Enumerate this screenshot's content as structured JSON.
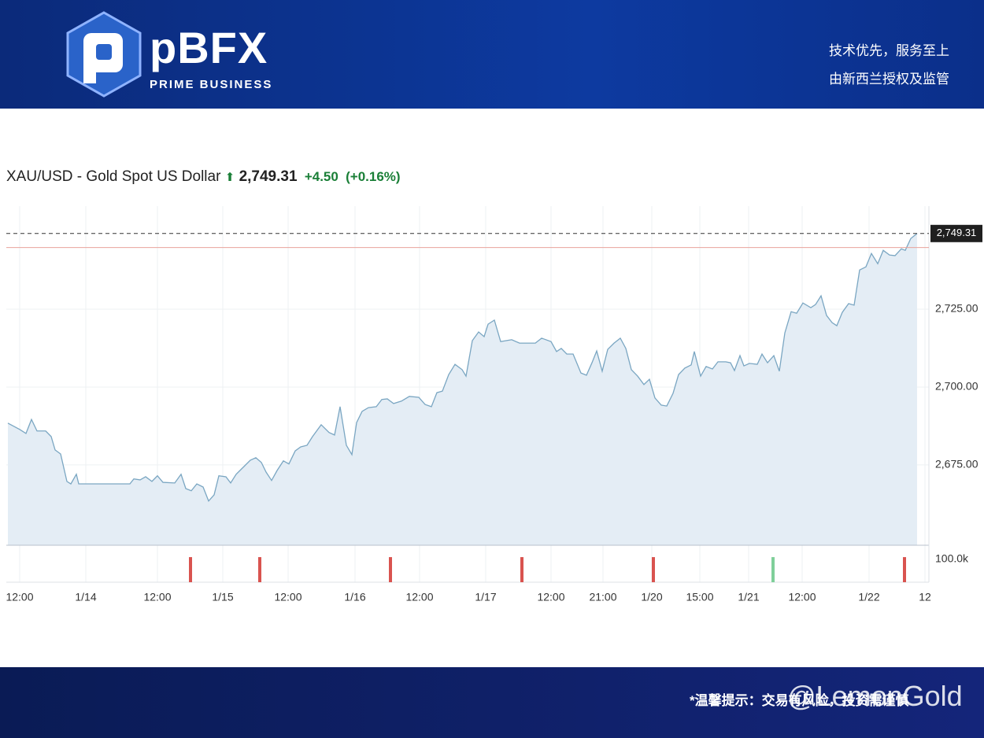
{
  "header": {
    "brand": "pBFX",
    "tagline": "PRIME BUSINESS",
    "slogans": [
      "技术优先，服务至上",
      "由新西兰授权及监管"
    ]
  },
  "chart_data": {
    "type": "line",
    "title": "XAU/USD - Gold Spot US Dollar",
    "price": {
      "value": 2749.31,
      "label": "2,749.31"
    },
    "change": "+4.50",
    "change_pct": "(+0.16%)",
    "reference_line": {
      "value": 2744.81,
      "color": "#e8a39b"
    },
    "x": [
      10,
      25,
      33,
      40,
      47,
      58,
      65,
      70,
      77,
      85,
      90,
      97,
      100,
      165,
      170,
      178,
      185,
      193,
      200,
      207,
      222,
      230,
      236,
      243,
      250,
      258,
      265,
      272,
      278,
      287,
      293,
      300,
      310,
      318,
      325,
      332,
      338,
      345,
      352,
      360,
      367,
      375,
      382,
      390,
      397,
      408,
      418,
      425,
      432,
      440,
      447,
      453,
      460,
      468,
      478,
      485,
      492,
      500,
      510,
      520,
      532,
      540,
      548,
      555,
      562,
      570,
      578,
      587,
      592,
      600,
      608,
      615,
      620,
      628,
      636,
      650,
      660,
      680,
      688,
      700,
      707,
      713,
      720,
      728,
      738,
      745,
      752,
      758,
      765,
      772,
      780,
      788,
      795,
      802,
      810,
      818,
      825,
      832,
      840,
      847,
      855,
      862,
      870,
      878,
      882,
      890,
      897,
      905,
      912,
      922,
      928,
      933,
      940,
      945,
      952,
      962,
      968,
      975,
      983,
      990,
      997,
      1005,
      1012,
      1020,
      1030,
      1036,
      1043,
      1050,
      1057,
      1063,
      1070,
      1078,
      1085,
      1092,
      1100,
      1107,
      1115,
      1122,
      1130,
      1137,
      1145,
      1150,
      1157,
      1165
    ],
    "series": [
      {
        "color": "#7aa6c2",
        "values": [
          2688.4,
          2686.4,
          2685.1,
          2689.6,
          2685.9,
          2685.9,
          2684.1,
          2679.8,
          2678.5,
          2669.7,
          2668.9,
          2672.0,
          2668.9,
          2668.9,
          2670.5,
          2670.2,
          2671.2,
          2669.7,
          2671.5,
          2669.4,
          2669.2,
          2672.0,
          2667.4,
          2666.7,
          2668.9,
          2667.9,
          2663.4,
          2665.4,
          2671.5,
          2671.2,
          2669.2,
          2672.0,
          2674.5,
          2676.5,
          2677.3,
          2675.8,
          2672.7,
          2670.0,
          2673.2,
          2676.3,
          2675.3,
          2679.5,
          2680.8,
          2681.3,
          2684.1,
          2687.9,
          2685.4,
          2684.6,
          2693.7,
          2681.3,
          2678.3,
          2688.6,
          2692.2,
          2693.4,
          2693.7,
          2696.0,
          2696.2,
          2694.7,
          2695.5,
          2697.0,
          2696.7,
          2694.4,
          2693.7,
          2698.2,
          2698.7,
          2704.0,
          2707.3,
          2705.6,
          2703.5,
          2714.9,
          2717.7,
          2716.2,
          2720.2,
          2721.5,
          2714.6,
          2715.2,
          2714.1,
          2714.1,
          2715.7,
          2714.6,
          2711.4,
          2712.4,
          2710.6,
          2710.6,
          2704.5,
          2703.8,
          2707.8,
          2711.6,
          2705.1,
          2712.1,
          2714.1,
          2715.7,
          2712.4,
          2705.6,
          2703.5,
          2700.8,
          2702.5,
          2696.5,
          2694.2,
          2693.9,
          2698.0,
          2704.0,
          2706.1,
          2707.1,
          2711.4,
          2703.5,
          2706.6,
          2705.8,
          2708.1,
          2708.1,
          2707.8,
          2705.3,
          2710.1,
          2706.8,
          2707.6,
          2707.3,
          2710.6,
          2707.8,
          2710.1,
          2705.1,
          2717.4,
          2724.2,
          2723.7,
          2727.0,
          2725.5,
          2726.5,
          2729.3,
          2723.0,
          2720.7,
          2719.7,
          2724.0,
          2726.8,
          2726.3,
          2737.6,
          2738.6,
          2742.9,
          2739.6,
          2743.9,
          2742.4,
          2742.2,
          2744.4,
          2743.9,
          2747.7,
          2749.31
        ]
      }
    ],
    "xlim": [
      8,
      1180
    ],
    "ylim": [
      2649.2,
      2758.1
    ],
    "xticks": [
      {
        "value": 25,
        "label": "12:00"
      },
      {
        "value": 109,
        "label": "1/14"
      },
      {
        "value": 200,
        "label": "12:00"
      },
      {
        "value": 283,
        "label": "1/15"
      },
      {
        "value": 366,
        "label": "12:00"
      },
      {
        "value": 451,
        "label": "1/16"
      },
      {
        "value": 533,
        "label": "12:00"
      },
      {
        "value": 617,
        "label": "1/17"
      },
      {
        "value": 700,
        "label": "12:00"
      },
      {
        "value": 766,
        "label": "21:00"
      },
      {
        "value": 828,
        "label": "1/20"
      },
      {
        "value": 889,
        "label": "15:00"
      },
      {
        "value": 951,
        "label": "1/21"
      },
      {
        "value": 1019,
        "label": "12:00"
      },
      {
        "value": 1104,
        "label": "1/22"
      },
      {
        "value": 1175,
        "label": "12"
      }
    ],
    "yticks": [
      {
        "value": 2675,
        "label": "2,675.00"
      },
      {
        "value": 2700,
        "label": "2,700.00"
      },
      {
        "value": 2725,
        "label": "2,725.00"
      }
    ],
    "grid": true,
    "volume": {
      "x": [
        242,
        330,
        496,
        663,
        830,
        982,
        1149
      ],
      "values": [
        110000,
        110000,
        110000,
        110000,
        110000,
        110000,
        110000
      ],
      "colors": [
        "#d9534f",
        "#d9534f",
        "#d9534f",
        "#d9534f",
        "#d9534f",
        "#7fcf9a",
        "#d9534f"
      ],
      "ylim": [
        0,
        162000
      ],
      "yticks": [
        {
          "value": 100000,
          "label": "100.0k"
        }
      ]
    }
  },
  "footer": {
    "notice": "*温馨提示：交易有风险，投资需谨慎",
    "watermark": "@LemonGold"
  }
}
